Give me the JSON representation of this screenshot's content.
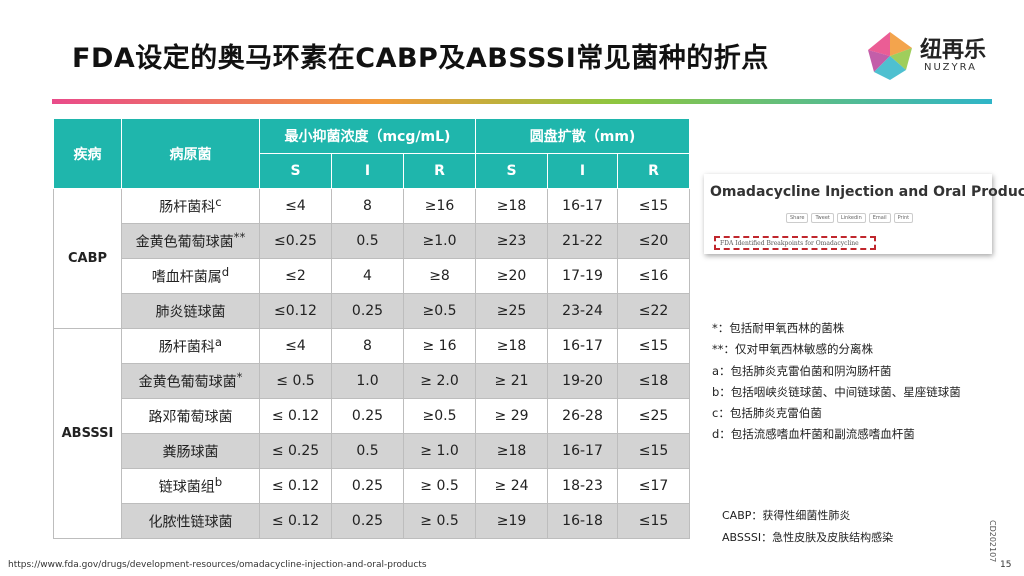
{
  "title": "FDA设定的奥马环素在CABP及ABSSSI常见菌种的折点",
  "logo": {
    "cn": "纽再乐",
    "en": "NUZYRA"
  },
  "table": {
    "headers": {
      "disease": "疾病",
      "pathogen": "病原菌",
      "mic": "最小抑菌浓度（mcg/mL)",
      "disk": "圆盘扩散（mm)",
      "s": "S",
      "i": "I",
      "r": "R"
    },
    "groups": [
      {
        "disease": "CABP",
        "rows": [
          {
            "name": "肠杆菌科",
            "sup": "c",
            "mic_s": "≤4",
            "mic_i": "8",
            "mic_r": "≥16",
            "disk_s": "≥18",
            "disk_i": "16-17",
            "disk_r": "≤15"
          },
          {
            "name": "金黄色葡萄球菌",
            "sup": "**",
            "mic_s": "≤0.25",
            "mic_i": "0.5",
            "mic_r": "≥1.0",
            "disk_s": "≥23",
            "disk_i": "21-22",
            "disk_r": "≤20"
          },
          {
            "name": "嗜血杆菌属",
            "sup": "d",
            "mic_s": "≤2",
            "mic_i": "4",
            "mic_r": "≥8",
            "disk_s": "≥20",
            "disk_i": "17-19",
            "disk_r": "≤16"
          },
          {
            "name": "肺炎链球菌",
            "sup": "",
            "mic_s": "≤0.12",
            "mic_i": "0.25",
            "mic_r": "≥0.5",
            "disk_s": "≥25",
            "disk_i": "23-24",
            "disk_r": "≤22"
          }
        ]
      },
      {
        "disease": "ABSSSI",
        "rows": [
          {
            "name": "肠杆菌科",
            "sup": "a",
            "mic_s": "≤4",
            "mic_i": "8",
            "mic_r": "≥ 16",
            "disk_s": "≥18",
            "disk_i": "16-17",
            "disk_r": "≤15"
          },
          {
            "name": "金黄色葡萄球菌",
            "sup": "*",
            "mic_s": "≤ 0.5",
            "mic_i": "1.0",
            "mic_r": "≥ 2.0",
            "disk_s": "≥ 21",
            "disk_i": "19-20",
            "disk_r": "≤18"
          },
          {
            "name": "路邓葡萄球菌",
            "sup": "",
            "mic_s": "≤ 0.12",
            "mic_i": "0.25",
            "mic_r": "≥0.5",
            "disk_s": "≥ 29",
            "disk_i": "26-28",
            "disk_r": "≤25"
          },
          {
            "name": "粪肠球菌",
            "sup": "",
            "mic_s": "≤ 0.25",
            "mic_i": "0.5",
            "mic_r": "≥ 1.0",
            "disk_s": "≥18",
            "disk_i": "16-17",
            "disk_r": "≤15"
          },
          {
            "name": "链球菌组",
            "sup": "b",
            "mic_s": "≤ 0.12",
            "mic_i": "0.25",
            "mic_r": "≥ 0.5",
            "disk_s": "≥ 24",
            "disk_i": "18-23",
            "disk_r": "≤17"
          },
          {
            "name": "化脓性链球菌",
            "sup": "",
            "mic_s": "≤ 0.12",
            "mic_i": "0.25",
            "mic_r": "≥ 0.5",
            "disk_s": "≥19",
            "disk_i": "16-18",
            "disk_r": "≤15"
          }
        ]
      }
    ]
  },
  "screenshot": {
    "title": "Omadacycline Injection and Oral Products",
    "buttons": [
      "Share",
      "Tweet",
      "Linkedin",
      "Email",
      "Print"
    ],
    "subtitle": "FDA Identified Breakpoints for Omadacycline"
  },
  "footnotes": [
    "*：包括耐甲氧西林的菌株",
    "**：仅对甲氧西林敏感的分离株",
    "a：包括肺炎克雷伯菌和阴沟肠杆菌",
    "b：包括咽峡炎链球菌、中间链球菌、星座链球菌",
    "c：包括肺炎克雷伯菌",
    "d：包括流感嗜血杆菌和副流感嗜血杆菌"
  ],
  "abbreviations": [
    "CABP：获得性细菌性肺炎",
    "ABSSSI：急性皮肤及皮肤结构感染"
  ],
  "doc_code": "CD202107",
  "url": "https://www.fda.gov/drugs/development-resources/omadacycline-injection-and-oral-products",
  "page_number": "15",
  "colors": {
    "header": "#1fb6ac",
    "shade": "#d3d3d3",
    "dash": "#c0262c"
  }
}
